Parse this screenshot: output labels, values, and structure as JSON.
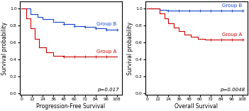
{
  "chart_data": [
    {
      "type": "line",
      "x_label": "Progression-Free Survival",
      "y_label": "Survival probability",
      "xlim": [
        -2,
        114
      ],
      "ylim": [
        -0.02,
        1.08
      ],
      "xticks": [
        0,
        12,
        24,
        36,
        48,
        60,
        72,
        84,
        96,
        108
      ],
      "yticks": [
        {
          "value": 0,
          "label": "0.0"
        },
        0.2,
        0.4,
        0.6,
        0.8,
        {
          "value": 1,
          "label": "1.0"
        }
      ],
      "annotations": [
        {
          "text": "p=0.017"
        }
      ],
      "series": [
        {
          "name": "Group B",
          "color": "#1144cc",
          "marker": "plus",
          "x": [
            0,
            10,
            10,
            18,
            18,
            24,
            24,
            36,
            36,
            48,
            48,
            60,
            60,
            72,
            72,
            84,
            84,
            96,
            96,
            108
          ],
          "values": [
            1.0,
            1.0,
            0.93,
            0.93,
            0.9,
            0.9,
            0.87,
            0.87,
            0.84,
            0.84,
            0.81,
            0.81,
            0.79,
            0.79,
            0.78,
            0.78,
            0.76,
            0.76,
            0.75,
            0.75
          ],
          "censor_x": [
            48,
            60,
            72,
            84,
            96,
            108
          ],
          "censor_y": [
            0.81,
            0.79,
            0.78,
            0.76,
            0.75,
            0.75
          ]
        },
        {
          "name": "Group A",
          "color": "#cc0000",
          "marker": "plus",
          "x": [
            0,
            5,
            5,
            10,
            10,
            15,
            15,
            20,
            20,
            28,
            28,
            36,
            36,
            48,
            48,
            108
          ],
          "values": [
            1.0,
            1.0,
            0.88,
            0.88,
            0.76,
            0.76,
            0.64,
            0.64,
            0.54,
            0.54,
            0.48,
            0.48,
            0.44,
            0.44,
            0.43,
            0.43
          ],
          "censor_x": [
            48,
            60,
            72,
            84,
            96
          ],
          "censor_y": [
            0.43,
            0.43,
            0.43,
            0.43,
            0.43
          ]
        }
      ]
    },
    {
      "type": "line",
      "x_label": "Overall Survival",
      "y_label": "Survival probability",
      "xlim": [
        -2,
        114
      ],
      "ylim": [
        -0.02,
        1.08
      ],
      "xticks": [
        0,
        12,
        24,
        36,
        48,
        60,
        72,
        84,
        96,
        108
      ],
      "yticks": [
        {
          "value": 0,
          "label": "0.0"
        },
        0.2,
        0.4,
        0.6,
        0.8,
        {
          "value": 1,
          "label": "1.0"
        }
      ],
      "annotations": [
        {
          "text": "p=0.0048"
        }
      ],
      "series": [
        {
          "name": "Group B",
          "color": "#1144cc",
          "marker": "plus",
          "x": [
            0,
            14,
            14,
            22,
            22,
            108
          ],
          "values": [
            1.0,
            1.0,
            0.98,
            0.98,
            0.97,
            0.97
          ],
          "censor_x": [
            24,
            36,
            48,
            60,
            72,
            84,
            96,
            108
          ],
          "censor_y": [
            0.97,
            0.97,
            0.97,
            0.97,
            0.97,
            0.97,
            0.97,
            0.97
          ]
        },
        {
          "name": "Group A",
          "color": "#cc0000",
          "marker": "plus",
          "x": [
            0,
            14,
            14,
            20,
            20,
            24,
            24,
            30,
            30,
            36,
            36,
            42,
            42,
            50,
            50,
            58,
            58,
            66,
            66,
            72,
            72,
            108
          ],
          "values": [
            1.0,
            1.0,
            0.94,
            0.94,
            0.88,
            0.88,
            0.82,
            0.82,
            0.77,
            0.77,
            0.73,
            0.73,
            0.69,
            0.69,
            0.66,
            0.66,
            0.64,
            0.64,
            0.63,
            0.63,
            0.63,
            0.63
          ],
          "censor_x": [
            72,
            84,
            96,
            108
          ],
          "censor_y": [
            0.63,
            0.63,
            0.63,
            0.63
          ]
        }
      ]
    }
  ]
}
